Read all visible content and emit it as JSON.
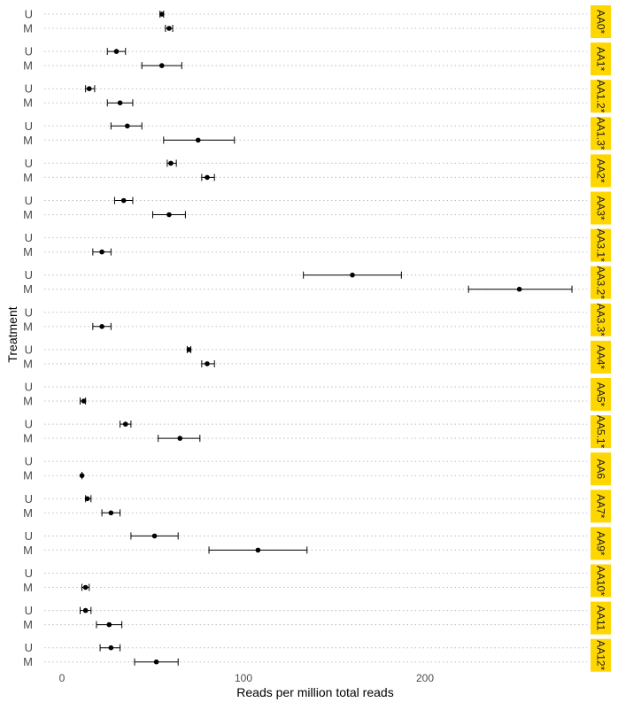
{
  "chart_data": {
    "type": "scatter",
    "title": "",
    "xlabel": "Reads per million total reads",
    "ylabel": "Treatment",
    "xlim": [
      -15,
      300
    ],
    "x_ticks": [
      0,
      100,
      200
    ],
    "row_labels": [
      "U",
      "M"
    ],
    "grid": "dotted horizontal lines per treatment row",
    "facet_label_color": "#FFD700",
    "point_color": "#000000",
    "facets": [
      {
        "label": "AA0*",
        "U": {
          "mean": 55,
          "lo": 54,
          "hi": 56
        },
        "M": {
          "mean": 59,
          "lo": 57,
          "hi": 61
        }
      },
      {
        "label": "AA1*",
        "U": {
          "mean": 30,
          "lo": 25,
          "hi": 35
        },
        "M": {
          "mean": 55,
          "lo": 44,
          "hi": 66
        }
      },
      {
        "label": "AA1.2*",
        "U": {
          "mean": 15,
          "lo": 13,
          "hi": 18
        },
        "M": {
          "mean": 32,
          "lo": 25,
          "hi": 39
        }
      },
      {
        "label": "AA1.3*",
        "U": {
          "mean": 36,
          "lo": 27,
          "hi": 44
        },
        "M": {
          "mean": 75,
          "lo": 56,
          "hi": 95
        }
      },
      {
        "label": "AA2*",
        "U": {
          "mean": 60,
          "lo": 58,
          "hi": 63
        },
        "M": {
          "mean": 80,
          "lo": 77,
          "hi": 84
        }
      },
      {
        "label": "AA3*",
        "U": {
          "mean": 34,
          "lo": 29,
          "hi": 39
        },
        "M": {
          "mean": 59,
          "lo": 50,
          "hi": 68
        }
      },
      {
        "label": "AA3.1*",
        "U": null,
        "M": {
          "mean": 22,
          "lo": 17,
          "hi": 27
        }
      },
      {
        "label": "AA3.2*",
        "U": {
          "mean": 160,
          "lo": 133,
          "hi": 187
        },
        "M": {
          "mean": 252,
          "lo": 224,
          "hi": 281
        }
      },
      {
        "label": "AA3.3*",
        "U": null,
        "M": {
          "mean": 22,
          "lo": 17,
          "hi": 27
        }
      },
      {
        "label": "AA4*",
        "U": {
          "mean": 70,
          "lo": 69,
          "hi": 71
        },
        "M": {
          "mean": 80,
          "lo": 77,
          "hi": 84
        }
      },
      {
        "label": "AA5*",
        "U": null,
        "M": {
          "mean": 12,
          "lo": 10,
          "hi": 13
        }
      },
      {
        "label": "AA5.1*",
        "U": {
          "mean": 35,
          "lo": 32,
          "hi": 38
        },
        "M": {
          "mean": 65,
          "lo": 53,
          "hi": 76
        }
      },
      {
        "label": "AA6",
        "U": null,
        "M": {
          "mean": 11,
          "lo": 11,
          "hi": 11
        }
      },
      {
        "label": "AA7*",
        "U": {
          "mean": 14,
          "lo": 13,
          "hi": 16
        },
        "M": {
          "mean": 27,
          "lo": 22,
          "hi": 32
        }
      },
      {
        "label": "AA9*",
        "U": {
          "mean": 51,
          "lo": 38,
          "hi": 64
        },
        "M": {
          "mean": 108,
          "lo": 81,
          "hi": 135
        }
      },
      {
        "label": "AA10*",
        "U": null,
        "M": {
          "mean": 13,
          "lo": 11,
          "hi": 15
        }
      },
      {
        "label": "AA11",
        "U": {
          "mean": 13,
          "lo": 10,
          "hi": 16
        },
        "M": {
          "mean": 26,
          "lo": 19,
          "hi": 33
        }
      },
      {
        "label": "AA12*",
        "U": {
          "mean": 27,
          "lo": 21,
          "hi": 32
        },
        "M": {
          "mean": 52,
          "lo": 40,
          "hi": 64
        }
      }
    ]
  }
}
